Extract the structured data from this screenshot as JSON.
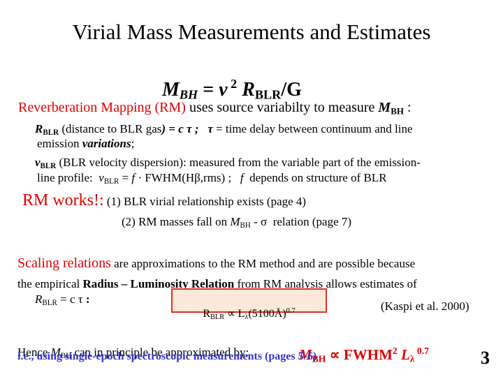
{
  "title": "Virial Mass Measurements and Estimates",
  "equation": [
    "M",
    "BH",
    " = ",
    "v",
    " 2",
    " R",
    "BLR",
    "/G"
  ],
  "intro": [
    "Reverberation Mapping (RM)",
    " uses source variabilty to measure ",
    "M",
    "BH",
    " :"
  ],
  "bullet1": {
    "line1": [
      "R",
      "BLR",
      " (distance to BLR gas",
      ") = c τ ;",
      "   τ",
      " = time delay between continuum and line"
    ],
    "line2": [
      "emission ",
      "variations",
      ";"
    ]
  },
  "bullet2": {
    "line1": [
      "v",
      "BLR",
      " (BLR velocity dispersion)",
      ": measured from the variable part of the emission-"
    ],
    "line2": [
      "line profile:  ",
      "v",
      "BLR",
      " = ",
      "f",
      " · FWHM(Hβ,rms) ;   ",
      "f",
      "  depends on structure of BLR"
    ]
  },
  "rm_works": {
    "label": "RM works!:",
    "item1": " (1) BLR virial relationship exists (page 4)",
    "item2": [
      "(2) RM masses fall on ",
      "M",
      "BH",
      " - σ  relation (page 7)"
    ]
  },
  "scaling": {
    "line1": [
      "Scaling relations",
      " are approximations to the RM method and are possible because"
    ],
    "line2": [
      "the empirical ",
      "Radius – Luminosity Relation",
      " from RM analysis allows estimates of"
    ],
    "line3": [
      "R",
      "BLR",
      " = c τ ",
      ":"
    ]
  },
  "box": [
    "R",
    "BLR",
    " ∝ L",
    "λ",
    "(5100Å)",
    "0.7"
  ],
  "citation": "(Kaspi et al. 2000)",
  "hence": [
    "Hence ",
    "M",
    "BH",
    " can in principle be approximated by:"
  ],
  "final_eq": [
    "M",
    "BH",
    " ∝ FWHM",
    "2",
    " ",
    "L",
    "λ",
    " 0.7"
  ],
  "note": "i.e., using single-epoch spectroscopic measurements (pages 5-6)",
  "page_number": "3"
}
